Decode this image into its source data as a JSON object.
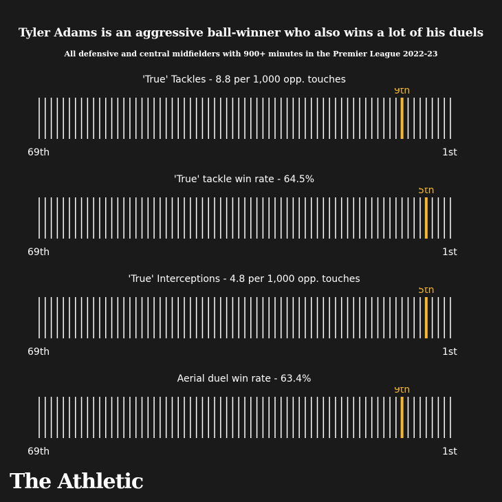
{
  "header": {
    "title": "Tyler Adams is an aggressive ball-winner who also wins a lot of his duels",
    "subtitle": "All defensive and central midfielders with 900+ minutes in the Premier League 2022-23"
  },
  "colors": {
    "background": "#1a1a1a",
    "bar": "#ffffff",
    "highlight": "#f5b82e"
  },
  "chart_data": [
    {
      "type": "bar",
      "title": "'True' Tackles - 8.8 per 1,000 opp. touches",
      "total": 69,
      "rank": 9,
      "highlight_label": "9th",
      "x_min_label": "69th",
      "x_max_label": "1st"
    },
    {
      "type": "bar",
      "title": "'True' tackle win rate - 64.5%",
      "total": 69,
      "rank": 5,
      "highlight_label": "5th",
      "x_min_label": "69th",
      "x_max_label": "1st"
    },
    {
      "type": "bar",
      "title": "'True' Interceptions - 4.8 per 1,000 opp. touches",
      "total": 69,
      "rank": 5,
      "highlight_label": "5th",
      "x_min_label": "69th",
      "x_max_label": "1st"
    },
    {
      "type": "bar",
      "title": "Aerial duel win rate - 63.4%",
      "total": 69,
      "rank": 9,
      "highlight_label": "9th",
      "x_min_label": "69th",
      "x_max_label": "1st"
    }
  ],
  "footer": {
    "logo": "The Athletic"
  }
}
